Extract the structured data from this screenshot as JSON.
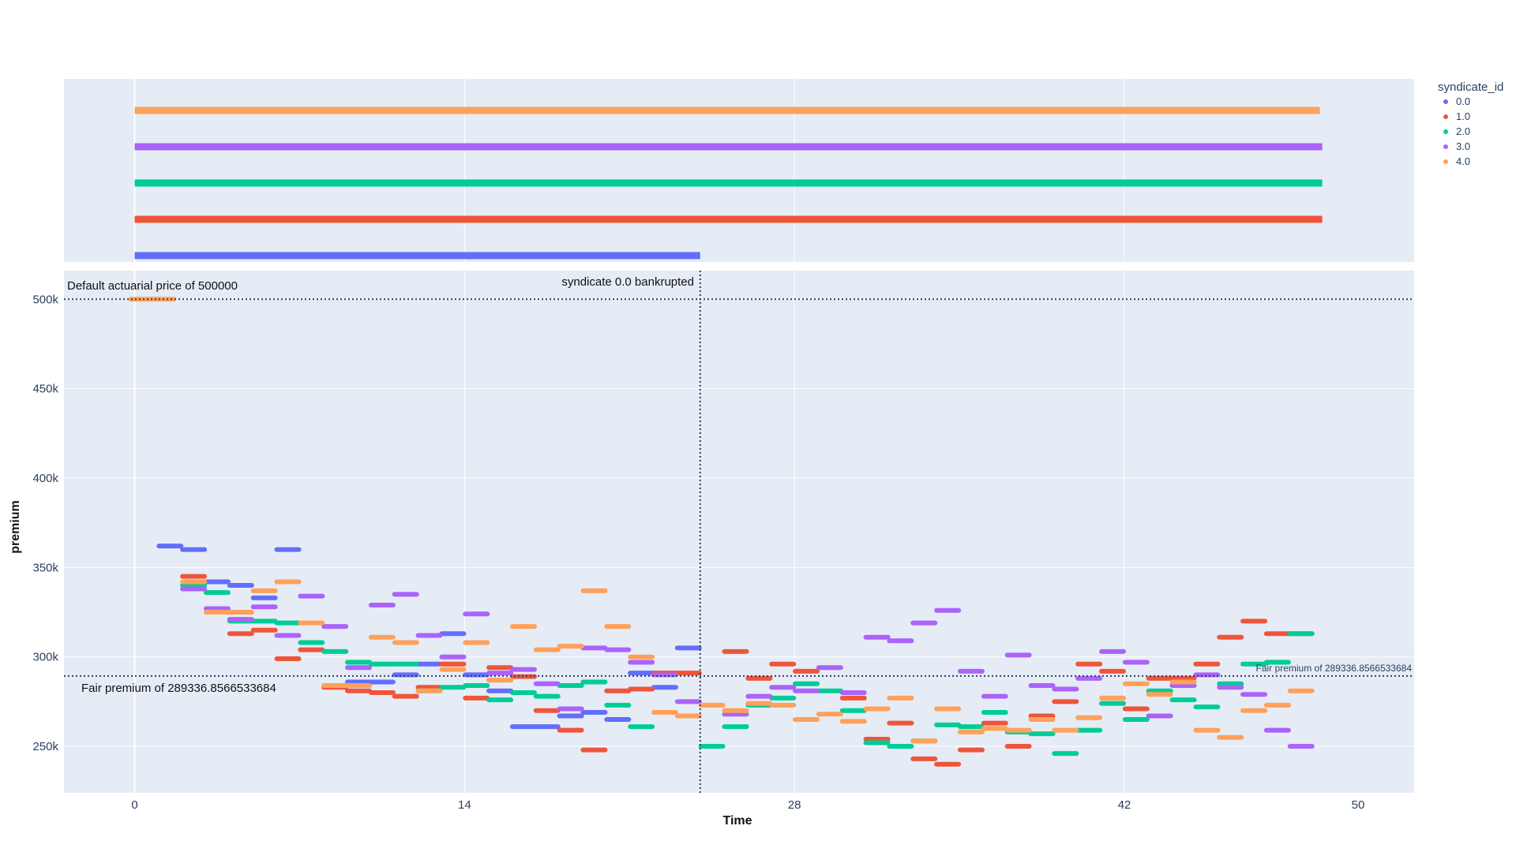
{
  "chart_data": {
    "type": "scatter",
    "xlabel": "Time",
    "ylabel": "premium",
    "xlim": [
      -3.0,
      54.3
    ],
    "ylim": [
      224000,
      516000
    ],
    "x_ticks": [
      0,
      14,
      28,
      42,
      50
    ],
    "x_tick_labels": [
      "0",
      "14",
      "28",
      "42",
      "50"
    ],
    "y_ticks": [
      250000,
      300000,
      350000,
      400000,
      450000,
      500000
    ],
    "y_tick_labels": [
      "250k",
      "300k",
      "350k",
      "400k",
      "450k",
      "500k"
    ],
    "grid": true,
    "legend": {
      "title": "syndicate_id",
      "placement": "top-right",
      "entries": [
        "0.0",
        "1.0",
        "2.0",
        "3.0",
        "4.0"
      ]
    },
    "colors": {
      "0.0": "#636efa",
      "1.0": "#ef553b",
      "2.0": "#00cc96",
      "3.0": "#ab63fa",
      "4.0": "#ffa15a",
      "plot_bg": "#e5ecf6",
      "ref_line": "#2a3f5f"
    },
    "activity_strip": {
      "rows": [
        {
          "syndicate": "4.0",
          "start": 0,
          "end": 50.3
        },
        {
          "syndicate": "3.0",
          "start": 0,
          "end": 50.4
        },
        {
          "syndicate": "2.0",
          "start": 0,
          "end": 50.4
        },
        {
          "syndicate": "1.0",
          "start": 0,
          "end": 50.4
        },
        {
          "syndicate": "0.0",
          "start": 0,
          "end": 24.0
        }
      ]
    },
    "reference_lines": [
      {
        "axis": "y",
        "value": 500000,
        "label": "Default actuarial price of 500000"
      },
      {
        "axis": "y",
        "value": 289336.8566533684,
        "label": "Fair premium of 289336.8566533684",
        "label_right": "Fair premium of 289336.8566533684"
      },
      {
        "axis": "x",
        "value": 24.0,
        "label": "syndicate 0.0 bankrupted"
      }
    ],
    "series": [
      {
        "name": "0.0",
        "points": [
          [
            1.5,
            362000
          ],
          [
            2.5,
            360000
          ],
          [
            3.5,
            342000
          ],
          [
            4.5,
            340000
          ],
          [
            5.5,
            333000
          ],
          [
            6.5,
            360000
          ],
          [
            9.5,
            286000
          ],
          [
            10.5,
            286000
          ],
          [
            11.5,
            290000
          ],
          [
            12.5,
            296000
          ],
          [
            13.5,
            313000
          ],
          [
            14.5,
            290000
          ],
          [
            15.5,
            281000
          ],
          [
            16.5,
            261000
          ],
          [
            17.5,
            261000
          ],
          [
            18.5,
            267000
          ],
          [
            19.5,
            269000
          ],
          [
            20.5,
            265000
          ],
          [
            21.5,
            291000
          ],
          [
            22.5,
            283000
          ],
          [
            23.5,
            305000
          ]
        ]
      },
      {
        "name": "1.0",
        "points": [
          [
            2.5,
            345000
          ],
          [
            4.5,
            313000
          ],
          [
            5.5,
            315000
          ],
          [
            6.5,
            299000
          ],
          [
            7.5,
            304000
          ],
          [
            8.5,
            283000
          ],
          [
            9.5,
            281000
          ],
          [
            10.5,
            280000
          ],
          [
            11.5,
            278000
          ],
          [
            12.5,
            283000
          ],
          [
            13.5,
            296000
          ],
          [
            14.5,
            277000
          ],
          [
            15.5,
            294000
          ],
          [
            16.5,
            289000
          ],
          [
            17.5,
            270000
          ],
          [
            18.5,
            259000
          ],
          [
            19.5,
            248000
          ],
          [
            20.5,
            281000
          ],
          [
            21.5,
            282000
          ],
          [
            22.5,
            291000
          ],
          [
            23.5,
            291000
          ],
          [
            25.5,
            303000
          ],
          [
            26.5,
            288000
          ],
          [
            27.5,
            296000
          ],
          [
            28.5,
            292000
          ],
          [
            30.5,
            277000
          ],
          [
            31.5,
            254000
          ],
          [
            32.5,
            263000
          ],
          [
            33.5,
            243000
          ],
          [
            34.5,
            240000
          ],
          [
            35.5,
            248000
          ],
          [
            36.5,
            263000
          ],
          [
            37.5,
            250000
          ],
          [
            38.5,
            267000
          ],
          [
            39.5,
            275000
          ],
          [
            40.5,
            296000
          ],
          [
            41.5,
            292000
          ],
          [
            42.5,
            271000
          ],
          [
            43.5,
            288000
          ],
          [
            44.5,
            288000
          ],
          [
            45.5,
            296000
          ],
          [
            46.5,
            311000
          ],
          [
            47.5,
            320000
          ],
          [
            48.5,
            313000
          ],
          [
            49.5,
            313000
          ]
        ]
      },
      {
        "name": "2.0",
        "points": [
          [
            2.5,
            340000
          ],
          [
            3.5,
            336000
          ],
          [
            4.5,
            320000
          ],
          [
            5.5,
            320000
          ],
          [
            6.5,
            319000
          ],
          [
            7.5,
            308000
          ],
          [
            8.5,
            303000
          ],
          [
            9.5,
            297000
          ],
          [
            10.5,
            296000
          ],
          [
            11.5,
            296000
          ],
          [
            12.5,
            281000
          ],
          [
            13.5,
            283000
          ],
          [
            14.5,
            284000
          ],
          [
            15.5,
            276000
          ],
          [
            16.5,
            280000
          ],
          [
            17.5,
            278000
          ],
          [
            18.5,
            284000
          ],
          [
            19.5,
            286000
          ],
          [
            20.5,
            273000
          ],
          [
            21.5,
            261000
          ],
          [
            24.5,
            250000
          ],
          [
            25.5,
            261000
          ],
          [
            26.5,
            273000
          ],
          [
            27.5,
            277000
          ],
          [
            28.5,
            285000
          ],
          [
            29.5,
            281000
          ],
          [
            30.5,
            270000
          ],
          [
            31.5,
            252000
          ],
          [
            32.5,
            250000
          ],
          [
            33.5,
            253000
          ],
          [
            34.5,
            262000
          ],
          [
            35.5,
            261000
          ],
          [
            36.5,
            269000
          ],
          [
            37.5,
            258000
          ],
          [
            38.5,
            257000
          ],
          [
            39.5,
            246000
          ],
          [
            40.5,
            259000
          ],
          [
            41.5,
            274000
          ],
          [
            42.5,
            265000
          ],
          [
            43.5,
            281000
          ],
          [
            44.5,
            276000
          ],
          [
            45.5,
            272000
          ],
          [
            46.5,
            285000
          ],
          [
            47.5,
            296000
          ],
          [
            48.5,
            297000
          ],
          [
            49.5,
            313000
          ]
        ]
      },
      {
        "name": "3.0",
        "points": [
          [
            2.5,
            338000
          ],
          [
            3.5,
            327000
          ],
          [
            4.5,
            321000
          ],
          [
            5.5,
            328000
          ],
          [
            6.5,
            312000
          ],
          [
            7.5,
            334000
          ],
          [
            8.5,
            317000
          ],
          [
            9.5,
            294000
          ],
          [
            10.5,
            329000
          ],
          [
            11.5,
            335000
          ],
          [
            12.5,
            312000
          ],
          [
            13.5,
            300000
          ],
          [
            14.5,
            324000
          ],
          [
            15.5,
            291000
          ],
          [
            16.5,
            293000
          ],
          [
            17.5,
            285000
          ],
          [
            18.5,
            271000
          ],
          [
            19.5,
            305000
          ],
          [
            20.5,
            304000
          ],
          [
            21.5,
            297000
          ],
          [
            22.5,
            290000
          ],
          [
            23.5,
            275000
          ],
          [
            25.5,
            268000
          ],
          [
            26.5,
            278000
          ],
          [
            27.5,
            283000
          ],
          [
            28.5,
            281000
          ],
          [
            29.5,
            294000
          ],
          [
            30.5,
            280000
          ],
          [
            31.5,
            311000
          ],
          [
            32.5,
            309000
          ],
          [
            33.5,
            319000
          ],
          [
            34.5,
            326000
          ],
          [
            35.5,
            292000
          ],
          [
            36.5,
            278000
          ],
          [
            37.5,
            301000
          ],
          [
            38.5,
            284000
          ],
          [
            39.5,
            282000
          ],
          [
            40.5,
            288000
          ],
          [
            41.5,
            303000
          ],
          [
            42.5,
            297000
          ],
          [
            43.5,
            267000
          ],
          [
            44.5,
            284000
          ],
          [
            45.5,
            290000
          ],
          [
            46.5,
            283000
          ],
          [
            47.5,
            279000
          ],
          [
            48.5,
            259000
          ],
          [
            49.5,
            250000
          ]
        ]
      },
      {
        "name": "4.0",
        "points": [
          [
            0.3,
            500000
          ],
          [
            1.2,
            500000
          ],
          [
            2.5,
            342000
          ],
          [
            3.5,
            325000
          ],
          [
            4.5,
            325000
          ],
          [
            5.5,
            337000
          ],
          [
            6.5,
            342000
          ],
          [
            7.5,
            319000
          ],
          [
            8.5,
            284000
          ],
          [
            9.5,
            284000
          ],
          [
            10.5,
            311000
          ],
          [
            11.5,
            308000
          ],
          [
            12.5,
            281000
          ],
          [
            13.5,
            293000
          ],
          [
            14.5,
            308000
          ],
          [
            15.5,
            287000
          ],
          [
            16.5,
            317000
          ],
          [
            17.5,
            304000
          ],
          [
            18.5,
            306000
          ],
          [
            19.5,
            337000
          ],
          [
            20.5,
            317000
          ],
          [
            21.5,
            300000
          ],
          [
            22.5,
            269000
          ],
          [
            23.5,
            267000
          ],
          [
            24.5,
            273000
          ],
          [
            25.5,
            270000
          ],
          [
            26.5,
            274000
          ],
          [
            27.5,
            273000
          ],
          [
            28.5,
            265000
          ],
          [
            29.5,
            268000
          ],
          [
            30.5,
            264000
          ],
          [
            31.5,
            271000
          ],
          [
            32.5,
            277000
          ],
          [
            33.5,
            253000
          ],
          [
            34.5,
            271000
          ],
          [
            35.5,
            258000
          ],
          [
            36.5,
            260000
          ],
          [
            37.5,
            259000
          ],
          [
            38.5,
            265000
          ],
          [
            39.5,
            259000
          ],
          [
            40.5,
            266000
          ],
          [
            41.5,
            277000
          ],
          [
            42.5,
            285000
          ],
          [
            43.5,
            279000
          ],
          [
            44.5,
            286000
          ],
          [
            45.5,
            259000
          ],
          [
            46.5,
            255000
          ],
          [
            47.5,
            270000
          ],
          [
            48.5,
            273000
          ],
          [
            49.5,
            281000
          ]
        ]
      }
    ]
  }
}
